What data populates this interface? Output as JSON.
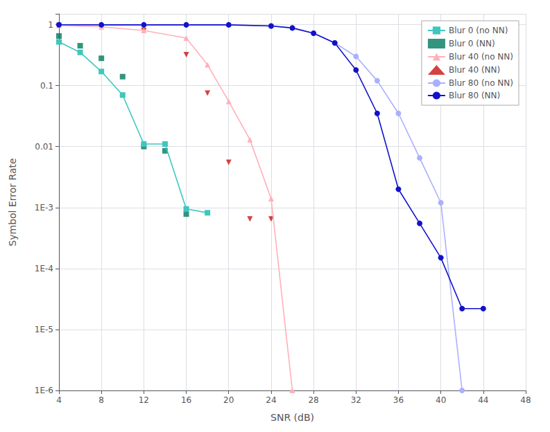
{
  "chart_data": {
    "type": "line",
    "xlabel": "SNR (dB)",
    "ylabel": "Symbol Error Rate",
    "log": "y",
    "grid": true,
    "legend": "upper right",
    "xlim": [
      4,
      48
    ],
    "xticks": [
      4,
      8,
      12,
      16,
      20,
      24,
      28,
      32,
      36,
      40,
      44,
      48
    ],
    "ylim": [
      1e-06,
      1.5
    ],
    "yticks": [
      {
        "value": 1e-06,
        "label": "1E-6"
      },
      {
        "value": 1e-05,
        "label": "1E-5"
      },
      {
        "value": 0.0001,
        "label": "1E-4"
      },
      {
        "value": 0.001,
        "label": "1E-3"
      },
      0.01,
      0.1,
      1
    ],
    "series": [
      {
        "name": "Blur 0 (no NN)",
        "color": "#3dc7be",
        "marker": "square",
        "line_style": "solid",
        "x": [
          4,
          6,
          8,
          10,
          12,
          14,
          16,
          18
        ],
        "values": [
          0.52,
          0.35,
          0.17,
          0.07,
          0.011,
          0.011,
          0.00095,
          0.00082
        ]
      },
      {
        "name": "Blur 0 (NN)",
        "color": "#007a5e",
        "marker": "square",
        "line_style": "none",
        "x": [
          4,
          6,
          8,
          10,
          12,
          14,
          16
        ],
        "values": [
          0.65,
          0.45,
          0.28,
          0.14,
          0.01,
          0.0085,
          0.00078
        ]
      },
      {
        "name": "Blur 40 (no NN)",
        "color": "#ffb0b8",
        "marker": "triangle-up",
        "line_style": "solid",
        "x": [
          4,
          8,
          12,
          16,
          18,
          20,
          22,
          24,
          26
        ],
        "values": [
          0.97,
          0.92,
          0.8,
          0.6,
          0.22,
          0.055,
          0.013,
          0.0014,
          1e-06
        ]
      },
      {
        "name": "Blur 40 (NN)",
        "color": "#cc1111",
        "marker": "triangle-down",
        "line_style": "none",
        "x": [
          4,
          8,
          12,
          16,
          18,
          20,
          22,
          24
        ],
        "values": [
          0.97,
          0.92,
          0.8,
          0.32,
          0.075,
          0.0055,
          0.00065,
          0.00065
        ]
      },
      {
        "name": "Blur 80 (no NN)",
        "color": "#aab0ff",
        "marker": "circle",
        "line_style": "solid",
        "x": [
          4,
          8,
          12,
          16,
          20,
          24,
          26,
          28,
          30,
          32,
          34,
          36,
          38,
          40,
          42
        ],
        "values": [
          0.995,
          0.99,
          0.99,
          0.99,
          0.99,
          0.95,
          0.88,
          0.72,
          0.5,
          0.3,
          0.12,
          0.035,
          0.0065,
          0.0012,
          1e-06
        ]
      },
      {
        "name": "Blur 80 (NN)",
        "color": "#1111cc",
        "marker": "circle",
        "line_style": "solid",
        "x": [
          4,
          8,
          12,
          16,
          20,
          24,
          26,
          28,
          30,
          32,
          34,
          36,
          38,
          40,
          42,
          44
        ],
        "values": [
          0.995,
          0.99,
          0.99,
          0.99,
          0.99,
          0.95,
          0.88,
          0.72,
          0.5,
          0.18,
          0.035,
          0.002,
          0.00055,
          0.00015,
          2.2e-05,
          2.2e-05
        ]
      }
    ]
  }
}
